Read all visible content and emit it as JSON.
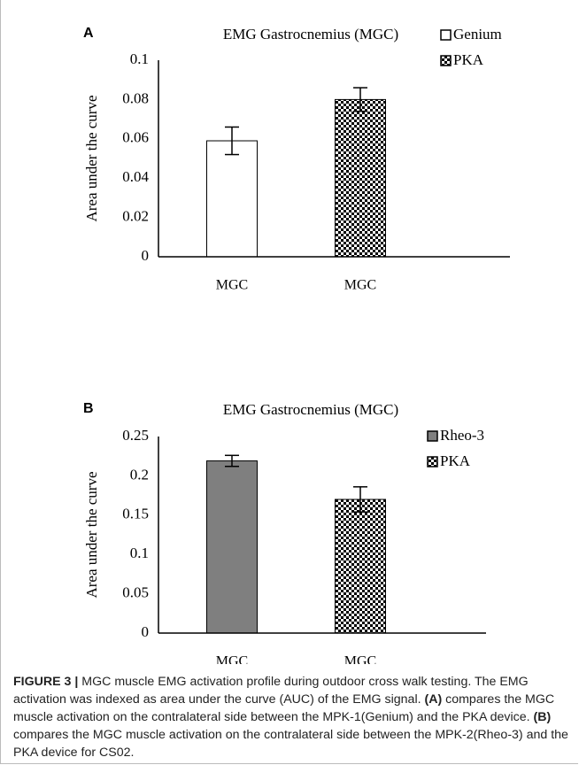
{
  "charts": [
    {
      "chart_data": {
        "type": "bar",
        "panel": "A",
        "title": "EMG Gastrocnemius (MGC)",
        "ylabel": "Area under the curve",
        "categories": [
          "MGC",
          "MGC"
        ],
        "series": [
          {
            "name": "Genium",
            "color": "#ffffff",
            "values": [
              0.059,
              null
            ],
            "errors": [
              0.007,
              null
            ]
          },
          {
            "name": "PKA",
            "color": "#000000",
            "pattern": "checker",
            "values": [
              null,
              0.08
            ],
            "errors": [
              null,
              0.006
            ]
          }
        ],
        "ylim": [
          0,
          0.1
        ],
        "yticks": [
          0,
          0.02,
          0.04,
          0.06,
          0.08,
          0.1
        ],
        "grid": false,
        "legend": "top-right"
      }
    },
    {
      "chart_data": {
        "type": "bar",
        "panel": "B",
        "title": "EMG Gastrocnemius (MGC)",
        "ylabel": "Area under the curve",
        "categories": [
          "MGC",
          "MGC"
        ],
        "series": [
          {
            "name": "Rheo-3",
            "color": "#7f7f7f",
            "values": [
              0.219,
              null
            ],
            "errors": [
              0.007,
              null
            ]
          },
          {
            "name": "PKA",
            "color": "#000000",
            "pattern": "checker",
            "values": [
              null,
              0.17
            ],
            "errors": [
              null,
              0.016
            ]
          }
        ],
        "ylim": [
          0,
          0.25
        ],
        "yticks": [
          0,
          0.05,
          0.1,
          0.15,
          0.2,
          0.25
        ],
        "grid": false,
        "legend": "top-right"
      }
    }
  ],
  "caption": [
    {
      "text": "FIGURE 3 |",
      "bold": true
    },
    {
      "text": " MGC muscle EMG activation profile during outdoor cross walk testing. The EMG activation was indexed as area under the curve (AUC) of the EMG signal. ",
      "bold": false
    },
    {
      "text": "(A)",
      "bold": true
    },
    {
      "text": " compares the MGC muscle activation on the contralateral side between the MPK-1(Genium) and the PKA device. ",
      "bold": false
    },
    {
      "text": "(B)",
      "bold": true
    },
    {
      "text": " compares the MGC muscle activation on the contralateral side between the MPK-2(Rheo-3) and the PKA device for CS02.",
      "bold": false
    }
  ]
}
